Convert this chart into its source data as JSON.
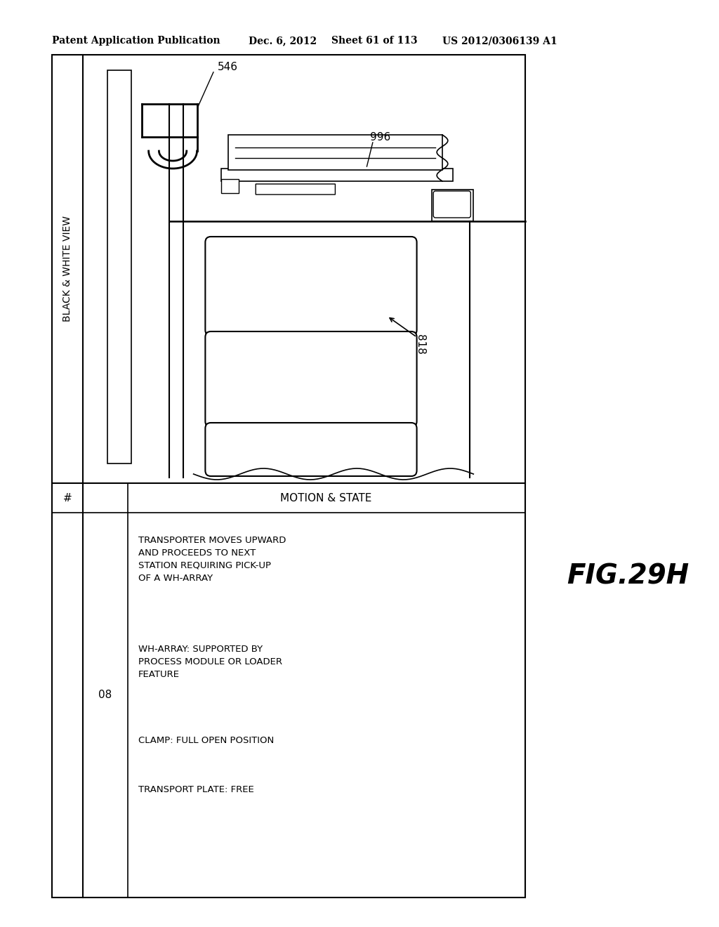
{
  "bg_color": "#ffffff",
  "header_text": "Patent Application Publication",
  "header_date": "Dec. 6, 2012",
  "header_sheet": "Sheet 61 of 113",
  "header_patent": "US 2012/0306139 A1",
  "fig_label": "FIG.29H",
  "bw_label": "BLACK & WHITE VIEW",
  "label_546": "546",
  "label_996": "996",
  "label_818": "818",
  "table_row_num": "08",
  "col1_header": "#",
  "col2_header": "MOTION & STATE",
  "motion_text_1": "TRANSPORTER MOVES UPWARD\nAND PROCEEDS TO NEXT\nSTATION REQUIRING PICK-UP\nOF A WH-ARRAY",
  "motion_text_2": "WH-ARRAY: SUPPORTED BY\nPROCESS MODULE OR LOADER\nFEATURE",
  "motion_text_3": "CLAMP: FULL OPEN POSITION",
  "motion_text_4": "TRANSPORT PLATE: FREE"
}
